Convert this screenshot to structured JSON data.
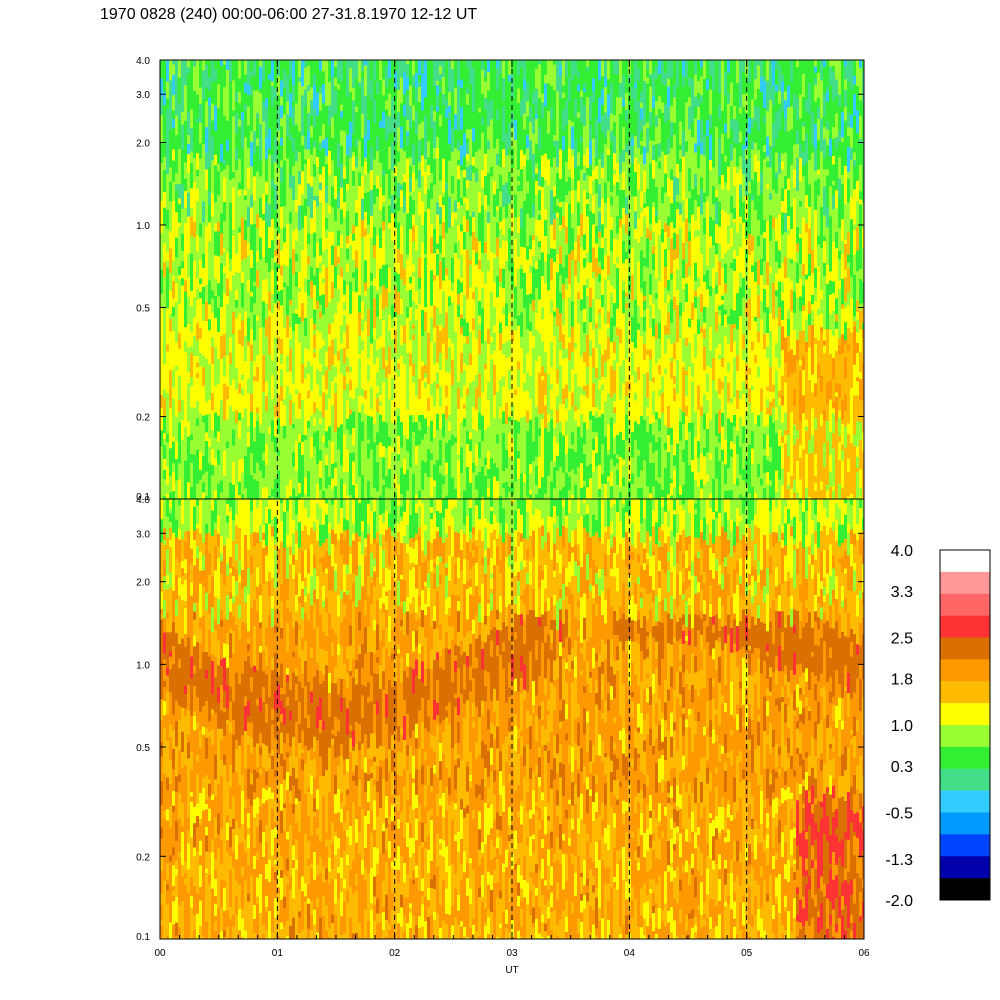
{
  "title": "1970 0828 (240) 00:00-06:00 27-31.8.1970  12-12 UT",
  "chart_data": {
    "type": "heatmap",
    "panels": [
      {
        "name": "",
        "y_ticks": [
          "0.1",
          "0.2",
          "0.5",
          "1.0",
          "2.0",
          "3.0",
          "4.0"
        ],
        "y_values": [
          0.1,
          0.2,
          0.5,
          1.0,
          2.0,
          3.0,
          4.0
        ],
        "y_scale": "log",
        "ylim": [
          0.1,
          4.0
        ],
        "dominant_level": 0.5
      },
      {
        "name": "",
        "y_ticks": [
          "0.1",
          "0.2",
          "0.5",
          "1.0",
          "2.0",
          "3.0",
          "4.0"
        ],
        "y_values": [
          0.1,
          0.2,
          0.5,
          1.0,
          2.0,
          3.0,
          4.0
        ],
        "y_scale": "log",
        "ylim": [
          0.1,
          4.0
        ],
        "dominant_level": 1.8
      }
    ],
    "x_ticks": [
      "00",
      "01",
      "02",
      "03",
      "04",
      "05",
      "06"
    ],
    "x_values": [
      0,
      1,
      2,
      3,
      4,
      5,
      6
    ],
    "xlim": [
      0,
      6
    ],
    "xlabel": "UT",
    "vertical_dashed_lines_at_hours": [
      1,
      2,
      3,
      4,
      5
    ],
    "colorbar": {
      "labels": [
        "4.0",
        "3.3",
        "2.5",
        "1.8",
        "1.0",
        "0.3",
        "-0.5",
        "-1.3",
        "-2.0"
      ],
      "label_values": [
        4.0,
        3.3,
        2.5,
        1.8,
        1.0,
        0.3,
        -0.5,
        -1.3,
        -2.0
      ],
      "colors_top_to_bottom": [
        "#ffffff",
        "#ff9999",
        "#ff6666",
        "#ff3333",
        "#d97000",
        "#ff9900",
        "#ffbb00",
        "#ffff00",
        "#99ff33",
        "#33ee33",
        "#44dd88",
        "#33ccff",
        "#0099ff",
        "#0044ff",
        "#0000aa",
        "#000000"
      ]
    },
    "grid": false
  }
}
